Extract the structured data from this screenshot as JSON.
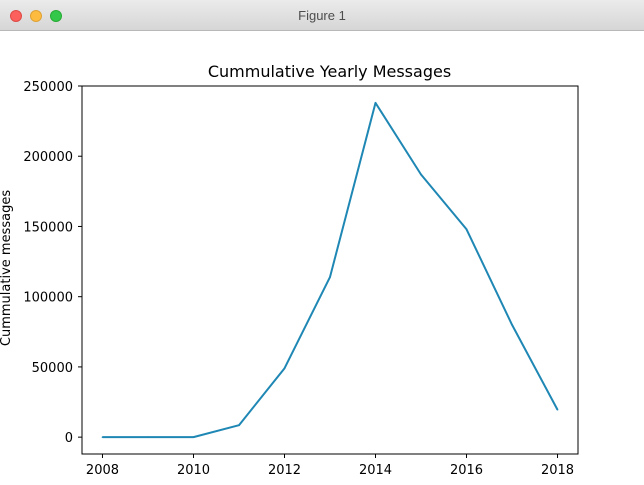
{
  "window": {
    "title": "Figure 1"
  },
  "chart_data": {
    "type": "line",
    "title": "Cummulative Yearly Messages",
    "xlabel": "",
    "ylabel": "Cummulative messages",
    "x": [
      2008,
      2009,
      2010,
      2011,
      2012,
      2013,
      2014,
      2015,
      2016,
      2017,
      2018
    ],
    "series": [
      {
        "values": [
          0,
          0,
          0,
          8500,
          49000,
          114000,
          238000,
          187000,
          148000,
          80000,
          19500
        ]
      }
    ],
    "xlim": [
      2007.55,
      2018.45
    ],
    "ylim": [
      -12000,
      250000
    ],
    "xticks": [
      2008,
      2010,
      2012,
      2014,
      2016,
      2018
    ],
    "yticks": [
      0,
      50000,
      100000,
      150000,
      200000,
      250000
    ],
    "grid": false,
    "colors": {
      "line": "#1f87b4"
    }
  }
}
